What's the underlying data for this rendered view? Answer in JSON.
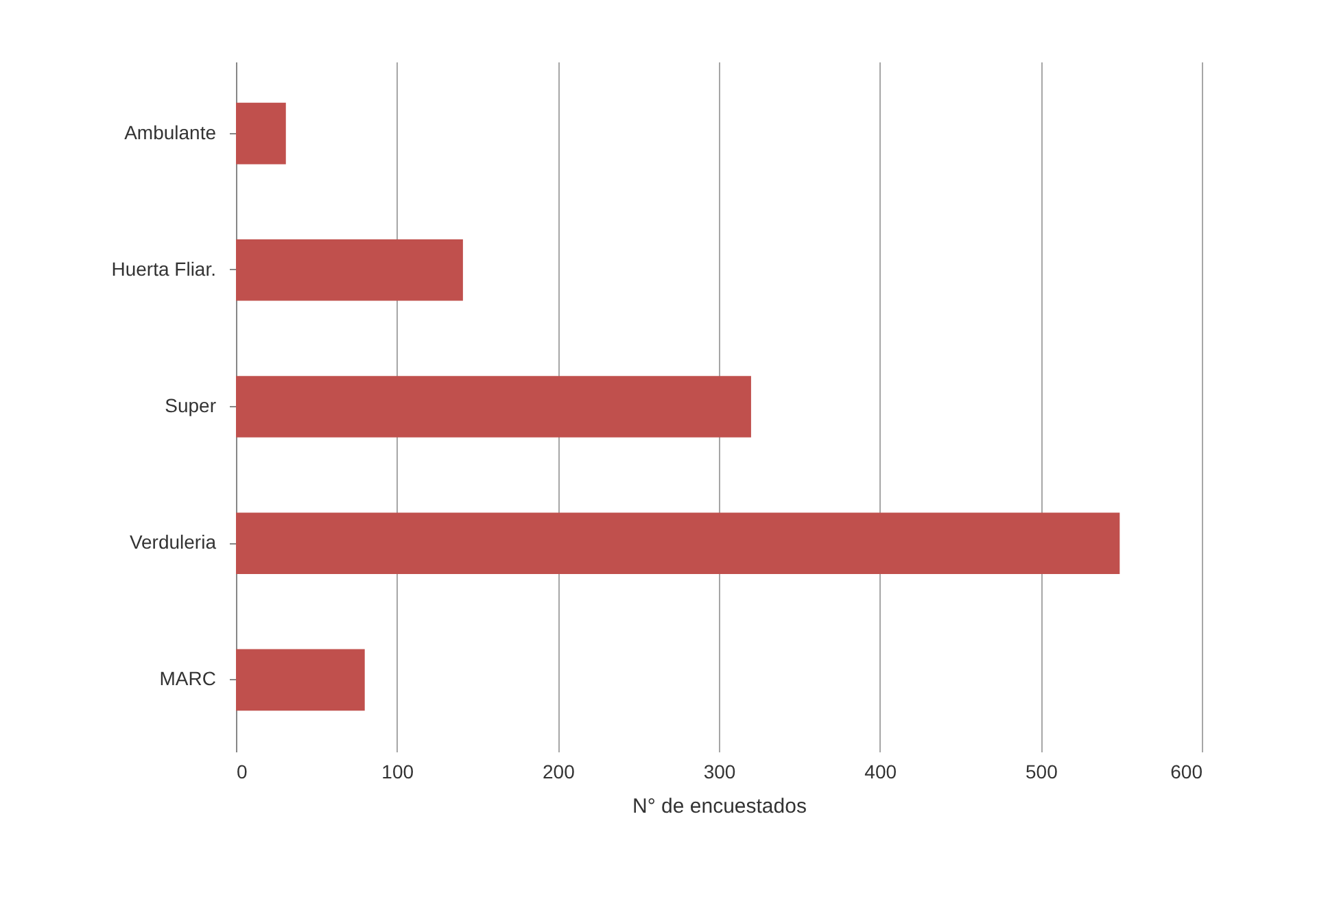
{
  "chart_data": {
    "type": "bar",
    "orientation": "horizontal",
    "xlabel": "N° de encuestados",
    "categories": [
      "Ambulante",
      "Huerta Fliar.",
      "Super",
      "Verduleria",
      "MARC"
    ],
    "values": [
      31,
      141,
      320,
      549,
      80
    ],
    "color": "#c0504d",
    "xlim": [
      0,
      600
    ],
    "xticks": [
      0,
      100,
      200,
      300,
      400,
      500,
      600
    ],
    "grid": "x"
  }
}
